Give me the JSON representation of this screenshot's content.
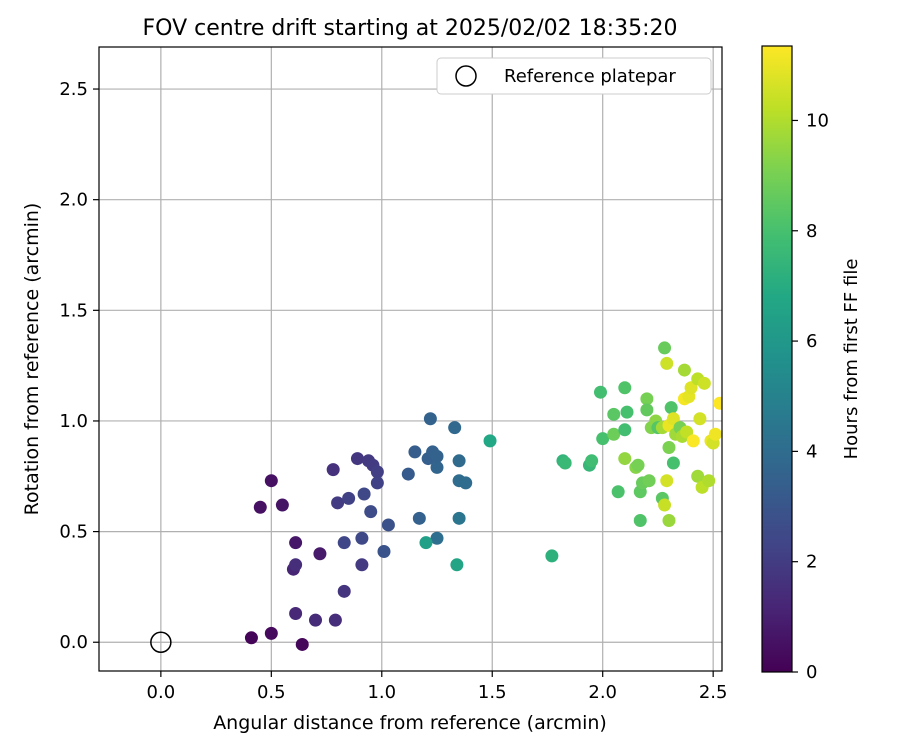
{
  "chart_data": {
    "type": "scatter",
    "title": "FOV centre drift starting at 2025/02/02 18:35:20",
    "xlabel": "Angular distance from reference (arcmin)",
    "ylabel": "Rotation from reference (arcmin)",
    "xlim": [
      -0.28,
      2.54
    ],
    "ylim": [
      -0.13,
      2.69
    ],
    "xticks": [
      0.0,
      0.5,
      1.0,
      1.5,
      2.0,
      2.5
    ],
    "xtick_labels": [
      "0.0",
      "0.5",
      "1.0",
      "1.5",
      "2.0",
      "2.5"
    ],
    "yticks": [
      0.0,
      0.5,
      1.0,
      1.5,
      2.0,
      2.5
    ],
    "ytick_labels": [
      "0.0",
      "0.5",
      "1.0",
      "1.5",
      "2.0",
      "2.5"
    ],
    "grid": true,
    "legend": {
      "placement": "top-right",
      "entries": [
        {
          "label": "Reference platepar",
          "marker": "open-circle"
        }
      ]
    },
    "colorbar": {
      "label": "Hours from first FF file",
      "colormap": "viridis",
      "range": [
        0,
        11.35
      ],
      "ticks": [
        0,
        2,
        4,
        6,
        8,
        10
      ],
      "tick_labels": [
        "0",
        "2",
        "4",
        "6",
        "8",
        "10"
      ]
    },
    "reference_point": {
      "x": 0.0,
      "y": 0.0
    },
    "points": [
      {
        "x": 0.41,
        "y": 0.02,
        "h": 0.1
      },
      {
        "x": 0.5,
        "y": 0.04,
        "h": 0.3
      },
      {
        "x": 0.64,
        "y": -0.01,
        "h": 0.2
      },
      {
        "x": 0.45,
        "y": 0.61,
        "h": 0.5
      },
      {
        "x": 0.5,
        "y": 0.73,
        "h": 0.5
      },
      {
        "x": 0.55,
        "y": 0.62,
        "h": 0.6
      },
      {
        "x": 0.61,
        "y": 0.45,
        "h": 0.7
      },
      {
        "x": 0.72,
        "y": 0.4,
        "h": 0.8
      },
      {
        "x": 0.6,
        "y": 0.33,
        "h": 1.2
      },
      {
        "x": 0.61,
        "y": 0.35,
        "h": 1.5
      },
      {
        "x": 0.61,
        "y": 0.13,
        "h": 1.3
      },
      {
        "x": 0.7,
        "y": 0.1,
        "h": 1.4
      },
      {
        "x": 0.79,
        "y": 0.1,
        "h": 1.5
      },
      {
        "x": 0.78,
        "y": 0.78,
        "h": 1.6
      },
      {
        "x": 0.83,
        "y": 0.23,
        "h": 1.7
      },
      {
        "x": 0.89,
        "y": 0.83,
        "h": 1.8
      },
      {
        "x": 0.91,
        "y": 0.35,
        "h": 1.9
      },
      {
        "x": 0.94,
        "y": 0.82,
        "h": 1.9
      },
      {
        "x": 0.96,
        "y": 0.8,
        "h": 2.0
      },
      {
        "x": 0.98,
        "y": 0.77,
        "h": 2.1
      },
      {
        "x": 0.98,
        "y": 0.72,
        "h": 2.2
      },
      {
        "x": 0.8,
        "y": 0.63,
        "h": 2.0
      },
      {
        "x": 0.85,
        "y": 0.65,
        "h": 2.2
      },
      {
        "x": 0.83,
        "y": 0.45,
        "h": 2.4
      },
      {
        "x": 0.91,
        "y": 0.47,
        "h": 2.5
      },
      {
        "x": 0.92,
        "y": 0.67,
        "h": 2.5
      },
      {
        "x": 0.95,
        "y": 0.59,
        "h": 2.6
      },
      {
        "x": 1.03,
        "y": 0.53,
        "h": 2.8
      },
      {
        "x": 1.01,
        "y": 0.41,
        "h": 2.9
      },
      {
        "x": 1.12,
        "y": 0.76,
        "h": 3.2
      },
      {
        "x": 1.15,
        "y": 0.86,
        "h": 3.3
      },
      {
        "x": 1.17,
        "y": 0.56,
        "h": 3.5
      },
      {
        "x": 1.21,
        "y": 0.83,
        "h": 3.4
      },
      {
        "x": 1.23,
        "y": 0.86,
        "h": 3.5
      },
      {
        "x": 1.22,
        "y": 1.01,
        "h": 3.6
      },
      {
        "x": 1.25,
        "y": 0.79,
        "h": 3.7
      },
      {
        "x": 1.25,
        "y": 0.84,
        "h": 3.6
      },
      {
        "x": 1.25,
        "y": 0.47,
        "h": 4.1
      },
      {
        "x": 1.33,
        "y": 0.97,
        "h": 3.8
      },
      {
        "x": 1.35,
        "y": 0.82,
        "h": 3.9
      },
      {
        "x": 1.35,
        "y": 0.73,
        "h": 4.0
      },
      {
        "x": 1.38,
        "y": 0.72,
        "h": 4.0
      },
      {
        "x": 1.35,
        "y": 0.56,
        "h": 4.4
      },
      {
        "x": 1.2,
        "y": 0.45,
        "h": 6.4
      },
      {
        "x": 1.34,
        "y": 0.35,
        "h": 6.6
      },
      {
        "x": 1.49,
        "y": 0.91,
        "h": 6.8
      },
      {
        "x": 1.77,
        "y": 0.39,
        "h": 7.2
      },
      {
        "x": 1.82,
        "y": 0.82,
        "h": 7.4
      },
      {
        "x": 1.83,
        "y": 0.81,
        "h": 7.6
      },
      {
        "x": 1.94,
        "y": 0.8,
        "h": 7.5
      },
      {
        "x": 1.95,
        "y": 0.82,
        "h": 7.8
      },
      {
        "x": 1.99,
        "y": 1.13,
        "h": 7.9
      },
      {
        "x": 2.0,
        "y": 0.92,
        "h": 8.0
      },
      {
        "x": 2.05,
        "y": 1.03,
        "h": 8.4
      },
      {
        "x": 2.05,
        "y": 0.94,
        "h": 8.8
      },
      {
        "x": 2.07,
        "y": 0.68,
        "h": 8.1
      },
      {
        "x": 2.1,
        "y": 1.15,
        "h": 8.2
      },
      {
        "x": 2.11,
        "y": 1.04,
        "h": 8.0
      },
      {
        "x": 2.1,
        "y": 0.96,
        "h": 7.9
      },
      {
        "x": 2.1,
        "y": 0.83,
        "h": 9.5
      },
      {
        "x": 2.15,
        "y": 0.79,
        "h": 9.3
      },
      {
        "x": 2.16,
        "y": 0.8,
        "h": 9.0
      },
      {
        "x": 2.17,
        "y": 0.55,
        "h": 8.2
      },
      {
        "x": 2.17,
        "y": 0.68,
        "h": 8.5
      },
      {
        "x": 2.18,
        "y": 0.72,
        "h": 8.7
      },
      {
        "x": 2.2,
        "y": 1.1,
        "h": 9.0
      },
      {
        "x": 2.2,
        "y": 1.05,
        "h": 8.6
      },
      {
        "x": 2.21,
        "y": 0.73,
        "h": 8.9
      },
      {
        "x": 2.22,
        "y": 0.97,
        "h": 9.2
      },
      {
        "x": 2.24,
        "y": 1.0,
        "h": 9.4
      },
      {
        "x": 2.25,
        "y": 0.97,
        "h": 8.3
      },
      {
        "x": 2.27,
        "y": 0.97,
        "h": 9.8
      },
      {
        "x": 2.27,
        "y": 0.65,
        "h": 8.4
      },
      {
        "x": 2.28,
        "y": 0.62,
        "h": 10.4
      },
      {
        "x": 2.28,
        "y": 1.33,
        "h": 8.7
      },
      {
        "x": 2.29,
        "y": 1.26,
        "h": 10.5
      },
      {
        "x": 2.29,
        "y": 0.73,
        "h": 10.6
      },
      {
        "x": 2.3,
        "y": 0.55,
        "h": 9.6
      },
      {
        "x": 2.3,
        "y": 0.88,
        "h": 9.1
      },
      {
        "x": 2.31,
        "y": 1.06,
        "h": 8.2
      },
      {
        "x": 2.32,
        "y": 0.81,
        "h": 8.0
      },
      {
        "x": 2.3,
        "y": 0.98,
        "h": 11.0
      },
      {
        "x": 2.32,
        "y": 1.01,
        "h": 10.8
      },
      {
        "x": 2.33,
        "y": 0.94,
        "h": 9.7
      },
      {
        "x": 2.35,
        "y": 0.97,
        "h": 9.0
      },
      {
        "x": 2.36,
        "y": 0.93,
        "h": 9.9
      },
      {
        "x": 2.37,
        "y": 1.23,
        "h": 9.8
      },
      {
        "x": 2.37,
        "y": 1.1,
        "h": 11.2
      },
      {
        "x": 2.38,
        "y": 0.95,
        "h": 10.3
      },
      {
        "x": 2.39,
        "y": 1.11,
        "h": 10.9
      },
      {
        "x": 2.4,
        "y": 1.15,
        "h": 10.8
      },
      {
        "x": 2.41,
        "y": 0.91,
        "h": 11.3
      },
      {
        "x": 2.43,
        "y": 1.19,
        "h": 10.2
      },
      {
        "x": 2.43,
        "y": 0.75,
        "h": 9.7
      },
      {
        "x": 2.44,
        "y": 1.01,
        "h": 10.6
      },
      {
        "x": 2.45,
        "y": 0.7,
        "h": 10.2
      },
      {
        "x": 2.46,
        "y": 1.17,
        "h": 10.5
      },
      {
        "x": 2.48,
        "y": 0.73,
        "h": 10.0
      },
      {
        "x": 2.49,
        "y": 0.91,
        "h": 11.0
      },
      {
        "x": 2.5,
        "y": 0.9,
        "h": 10.6
      },
      {
        "x": 2.51,
        "y": 0.94,
        "h": 11.1
      },
      {
        "x": 2.53,
        "y": 1.08,
        "h": 11.35
      }
    ]
  }
}
